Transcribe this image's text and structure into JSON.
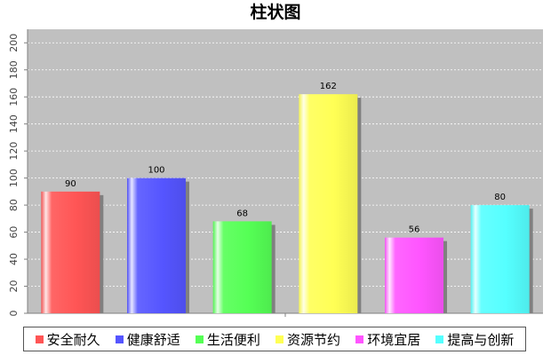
{
  "chart_data": {
    "type": "bar",
    "title": "柱状图",
    "xlabel": "",
    "ylabel": "",
    "ylim": [
      0,
      210
    ],
    "yticks": [
      0,
      20,
      40,
      60,
      80,
      100,
      120,
      140,
      160,
      180,
      200
    ],
    "grid": true,
    "legend_position": "bottom",
    "series": [
      {
        "name": "安全耐久",
        "value": 90,
        "color": "#ff5555"
      },
      {
        "name": "健康舒适",
        "value": 100,
        "color": "#5555ff"
      },
      {
        "name": "生活便利",
        "value": 68,
        "color": "#55ff55"
      },
      {
        "name": "资源节约",
        "value": 162,
        "color": "#ffff55"
      },
      {
        "name": "环境宜居",
        "value": 56,
        "color": "#ff55ff"
      },
      {
        "name": "提高与创新",
        "value": 80,
        "color": "#55ffff"
      }
    ]
  }
}
